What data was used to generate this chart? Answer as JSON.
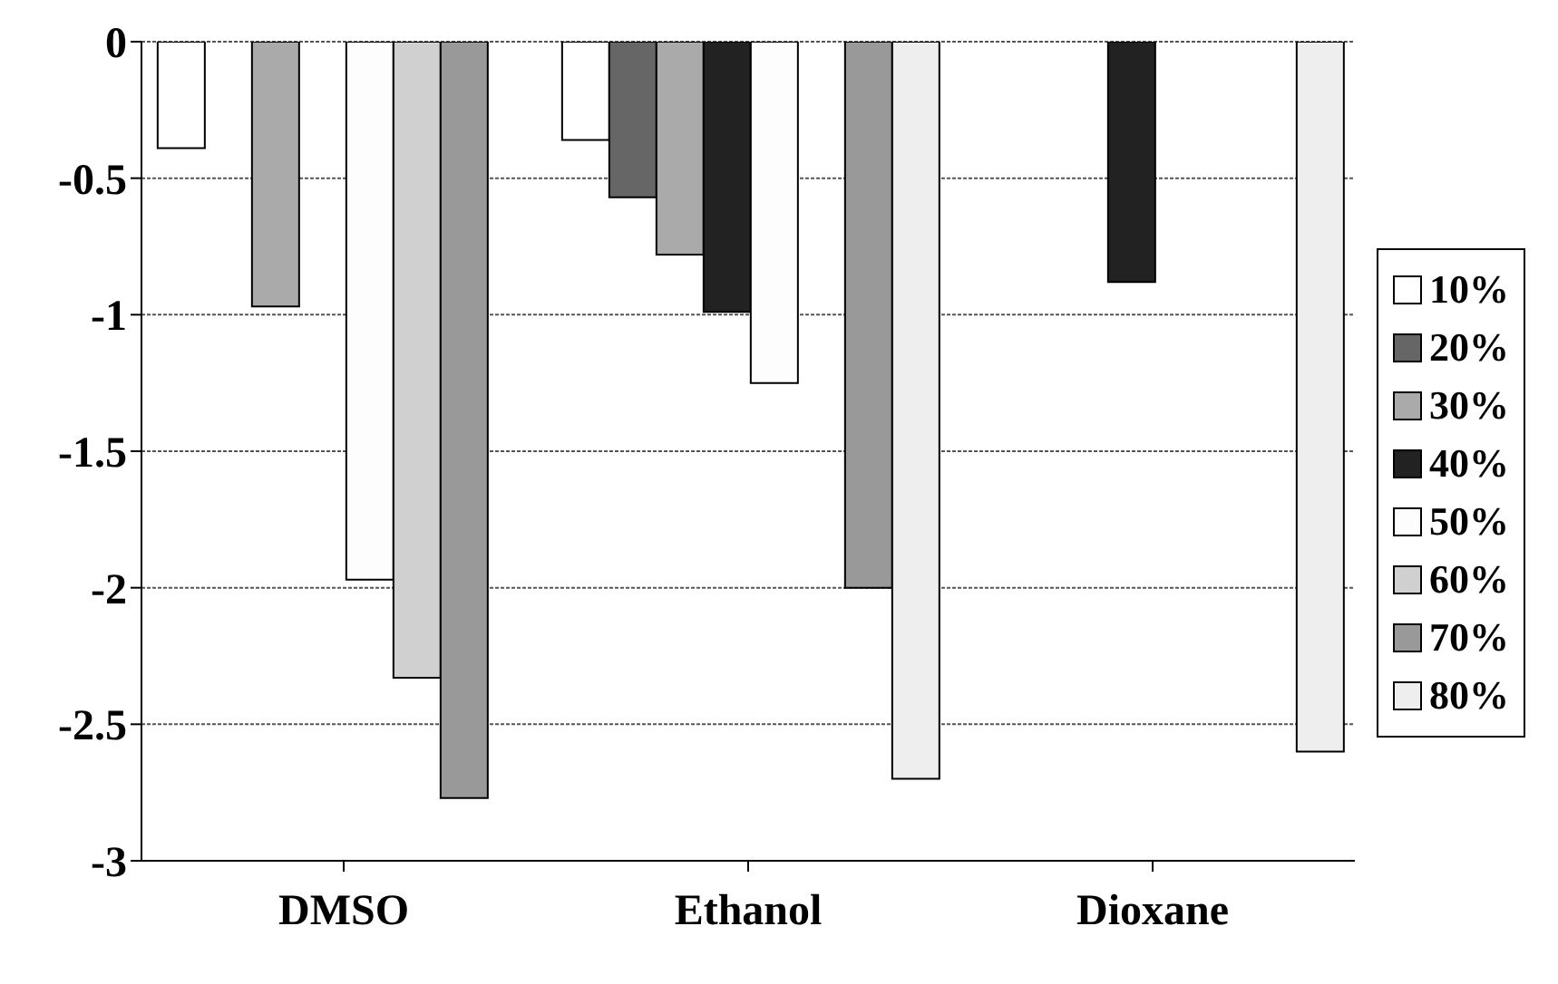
{
  "chart_data": {
    "type": "bar",
    "categories": [
      "DMSO",
      "Ethanol",
      "Dioxane"
    ],
    "series": [
      {
        "name": "10%",
        "color": "#ffffff",
        "values": [
          -0.39,
          -0.36,
          0
        ]
      },
      {
        "name": "20%",
        "color": "#666666",
        "values": [
          0,
          -0.57,
          0
        ]
      },
      {
        "name": "30%",
        "color": "#aaaaaa",
        "values": [
          -0.97,
          -0.78,
          0
        ]
      },
      {
        "name": "40%",
        "color": "#222222",
        "values": [
          0,
          -0.99,
          -0.88
        ]
      },
      {
        "name": "50%",
        "color": "#fdfdfd",
        "values": [
          -1.97,
          -1.25,
          0
        ]
      },
      {
        "name": "60%",
        "color": "#d0d0d0",
        "values": [
          -2.33,
          0,
          0
        ]
      },
      {
        "name": "70%",
        "color": "#999999",
        "values": [
          -2.77,
          -2.0,
          0
        ]
      },
      {
        "name": "80%",
        "color": "#eeeeee",
        "values": [
          0,
          -2.7,
          -2.6
        ]
      }
    ],
    "ylim": [
      -3,
      0
    ],
    "yticks": [
      0,
      -0.5,
      -1,
      -1.5,
      -2,
      -2.5,
      -3
    ],
    "grid": "y",
    "legend": "right"
  }
}
